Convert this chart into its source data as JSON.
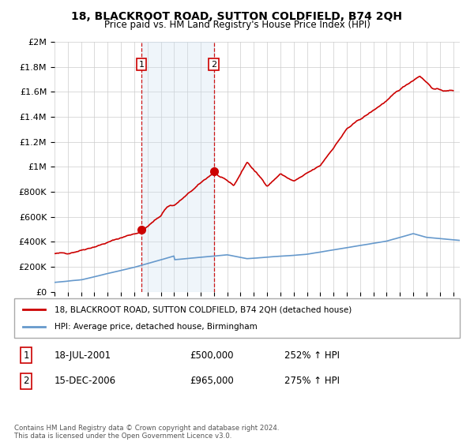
{
  "title": "18, BLACKROOT ROAD, SUTTON COLDFIELD, B74 2QH",
  "subtitle": "Price paid vs. HM Land Registry's House Price Index (HPI)",
  "legend_line1": "18, BLACKROOT ROAD, SUTTON COLDFIELD, B74 2QH (detached house)",
  "legend_line2": "HPI: Average price, detached house, Birmingham",
  "footnote": "Contains HM Land Registry data © Crown copyright and database right 2024.\nThis data is licensed under the Open Government Licence v3.0.",
  "annotation1_label": "1",
  "annotation1_date": "18-JUL-2001",
  "annotation1_price": "£500,000",
  "annotation1_hpi": "252% ↑ HPI",
  "annotation2_label": "2",
  "annotation2_date": "15-DEC-2006",
  "annotation2_price": "£965,000",
  "annotation2_hpi": "275% ↑ HPI",
  "house_color": "#cc0000",
  "hpi_color": "#6699cc",
  "shaded_color": "#ddeeff",
  "annotation_box_color": "#cc0000",
  "ylim": [
    0,
    2000000
  ],
  "yticks": [
    0,
    200000,
    400000,
    600000,
    800000,
    1000000,
    1200000,
    1400000,
    1600000,
    1800000,
    2000000
  ],
  "ytick_labels": [
    "£0",
    "£200K",
    "£400K",
    "£600K",
    "£800K",
    "£1M",
    "£1.2M",
    "£1.4M",
    "£1.6M",
    "£1.8M",
    "£2M"
  ],
  "sale1_x": 2001.54,
  "sale1_y": 500000,
  "sale2_x": 2007.0,
  "sale2_y": 965000,
  "shaded_x_start": 2001.54,
  "shaded_x_end": 2007.0,
  "xmin": 1995.0,
  "xmax": 2025.5
}
